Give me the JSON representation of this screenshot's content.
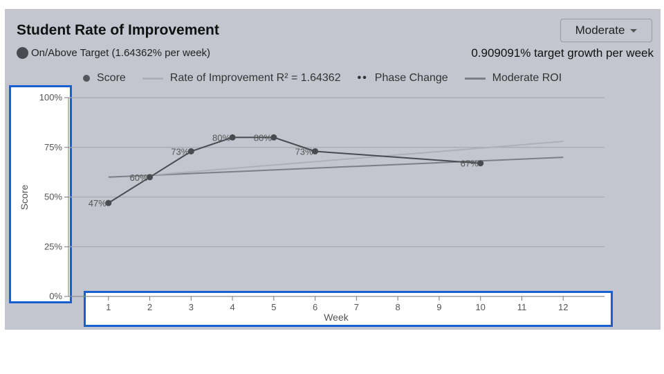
{
  "header": {
    "title": "Student Rate of Improvement",
    "status": "On/Above Target (1.64362% per week)",
    "dropdown": "Moderate",
    "target": "0.909091% target growth per week"
  },
  "legend": {
    "score": "Score",
    "roi": "Rate of Improvement R² = 1.64362",
    "phase": "Phase Change",
    "moderate": "Moderate ROI"
  },
  "colors": {
    "score": "#4a4b50",
    "roi": "#adb0b7",
    "moderate": "#7c7e84"
  },
  "chart_data": {
    "type": "line",
    "xlabel": "Week",
    "ylabel": "Score",
    "xticks": [
      1,
      2,
      3,
      4,
      5,
      6,
      7,
      8,
      9,
      10,
      11,
      12
    ],
    "yticks": [
      "0%",
      "25%",
      "50%",
      "75%",
      "100%"
    ],
    "ylim": [
      0,
      100
    ],
    "xlim": [
      0,
      13
    ],
    "series": [
      {
        "name": "Score",
        "x": [
          1,
          2,
          3,
          4,
          5,
          6,
          10
        ],
        "y": [
          47,
          60,
          73,
          80,
          80,
          73,
          67
        ],
        "labels": [
          "47%",
          "60%",
          "73%",
          "80%",
          "80%",
          "73%",
          "67%"
        ]
      },
      {
        "name": "Rate of Improvement",
        "x": [
          2,
          12
        ],
        "y": [
          61,
          78
        ]
      },
      {
        "name": "Moderate ROI",
        "x": [
          1,
          12
        ],
        "y": [
          60,
          70
        ]
      }
    ]
  }
}
